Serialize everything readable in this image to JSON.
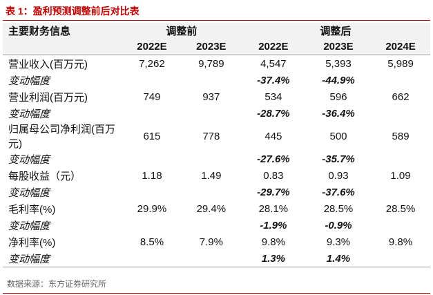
{
  "title": "表 1：盈利预测调整前后对比表",
  "table": {
    "header": {
      "label": "主要财务信息",
      "groups": [
        "调整前",
        "调整后"
      ],
      "years": [
        "2022E",
        "2023E",
        "2022E",
        "2023E",
        "2024E"
      ]
    },
    "metrics": [
      {
        "label": "营业收入(百万元)",
        "values": [
          "7,262",
          "9,789",
          "4,547",
          "5,393",
          "5,989"
        ],
        "change": {
          "label": "变动幅度",
          "values": [
            null,
            null,
            "-37.4%",
            "-44.9%",
            null
          ]
        }
      },
      {
        "label": "营业利润(百万元)",
        "values": [
          "749",
          "937",
          "534",
          "596",
          "662"
        ],
        "change": {
          "label": "变动幅度",
          "values": [
            null,
            null,
            "-28.7%",
            "-36.4%",
            null
          ]
        }
      },
      {
        "label": "归属母公司净利润(百万元)",
        "values": [
          "615",
          "778",
          "445",
          "500",
          "589"
        ],
        "change": {
          "label": "变动幅度",
          "values": [
            null,
            null,
            "-27.6%",
            "-35.7%",
            null
          ]
        }
      },
      {
        "label": "每股收益（元）",
        "values": [
          "1.18",
          "1.49",
          "0.83",
          "0.93",
          "1.09"
        ],
        "change": {
          "label": "变动幅度",
          "values": [
            null,
            null,
            "-29.7%",
            "-37.6%",
            null
          ]
        }
      },
      {
        "label": "毛利率(%)",
        "values": [
          "29.9%",
          "29.4%",
          "28.1%",
          "28.5%",
          "28.5%"
        ],
        "change": {
          "label": "变动幅度",
          "values": [
            null,
            null,
            "-1.9%",
            "-0.9%",
            null
          ]
        }
      },
      {
        "label": "净利率(%)",
        "values": [
          "8.5%",
          "7.9%",
          "9.8%",
          "9.3%",
          "9.8%"
        ],
        "change": {
          "label": "变动幅度",
          "values": [
            null,
            null,
            "1.3%",
            "1.4%",
            null
          ]
        }
      }
    ]
  },
  "source": "数据来源：东方证券研究所"
}
